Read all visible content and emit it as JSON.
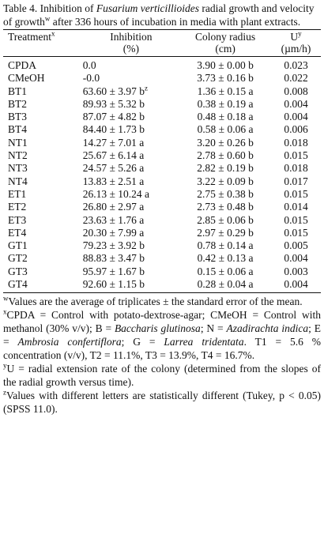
{
  "caption": {
    "prefix": "Table 4. Inhibition of ",
    "organism": "Fusarium verticillioides",
    "suffix_a": " radial growth and velocity of growth",
    "sup": "w",
    "suffix_b": " after 336 hours of incubation in media with plant extracts."
  },
  "headers": {
    "treatment": "Treatment",
    "treatment_sup": "x",
    "inhibition_line1": "Inhibition",
    "inhibition_line2": "(%)",
    "radius_line1": "Colony radius",
    "radius_line2": "(cm)",
    "u_line1": "U",
    "u_sup": "y",
    "u_line2": "(µm/h)"
  },
  "rows": [
    {
      "treatment": "CPDA",
      "inhibition": "0.0",
      "inhibition_sup": "",
      "radius": "3.90 ± 0.00 b",
      "u": "0.023"
    },
    {
      "treatment": "CMeOH",
      "inhibition": "-0.0",
      "inhibition_sup": "",
      "radius": "3.73 ± 0.16 b",
      "u": "0.022"
    },
    {
      "treatment": "BT1",
      "inhibition": "63.60 ± 3.97 b",
      "inhibition_sup": "z",
      "radius": "1.36 ± 0.15 a",
      "u": "0.008"
    },
    {
      "treatment": "BT2",
      "inhibition": "89.93 ± 5.32 b",
      "inhibition_sup": "",
      "radius": "0.38 ± 0.19 a",
      "u": "0.004"
    },
    {
      "treatment": "BT3",
      "inhibition": "87.07 ± 4.82 b",
      "inhibition_sup": "",
      "radius": "0.48 ± 0.18 a",
      "u": "0.004"
    },
    {
      "treatment": "BT4",
      "inhibition": "84.40 ± 1.73 b",
      "inhibition_sup": "",
      "radius": "0.58 ± 0.06 a",
      "u": "0.006"
    },
    {
      "treatment": "NT1",
      "inhibition": "14.27 ± 7.01 a",
      "inhibition_sup": "",
      "radius": "3.20 ± 0.26 b",
      "u": "0.018"
    },
    {
      "treatment": "NT2",
      "inhibition": "25.67 ± 6.14 a",
      "inhibition_sup": "",
      "radius": "2.78 ± 0.60 b",
      "u": "0.015"
    },
    {
      "treatment": "NT3",
      "inhibition": "24.57 ± 5.26 a",
      "inhibition_sup": "",
      "radius": "2.82 ± 0.19 b",
      "u": "0.018"
    },
    {
      "treatment": "NT4",
      "inhibition": "13.83 ± 2.51 a",
      "inhibition_sup": "",
      "radius": "3.22 ± 0.09 b",
      "u": "0.017"
    },
    {
      "treatment": "ET1",
      "inhibition": "26.13 ± 10.24 a",
      "inhibition_sup": "",
      "radius": "2.75 ± 0.38 b",
      "u": "0.015"
    },
    {
      "treatment": "ET2",
      "inhibition": "26.80 ± 2.97 a",
      "inhibition_sup": "",
      "radius": "2.73 ± 0.48 b",
      "u": "0.014"
    },
    {
      "treatment": "ET3",
      "inhibition": "23.63 ± 1.76 a",
      "inhibition_sup": "",
      "radius": "2.85 ± 0.06 b",
      "u": "0.015"
    },
    {
      "treatment": "ET4",
      "inhibition": "20.30 ± 7.99 a",
      "inhibition_sup": "",
      "radius": "2.97 ± 0.29 b",
      "u": "0.015"
    },
    {
      "treatment": "GT1",
      "inhibition": "79.23 ± 3.92 b",
      "inhibition_sup": "",
      "radius": "0.78 ± 0.14 a",
      "u": "0.005"
    },
    {
      "treatment": "GT2",
      "inhibition": "88.83 ± 3.47 b",
      "inhibition_sup": "",
      "radius": "0.42 ± 0.13 a",
      "u": "0.004"
    },
    {
      "treatment": "GT3",
      "inhibition": "95.97 ± 1.67 b",
      "inhibition_sup": "",
      "radius": "0.15 ± 0.06 a",
      "u": "0.003"
    },
    {
      "treatment": "GT4",
      "inhibition": "92.60 ± 1.15 b",
      "inhibition_sup": "",
      "radius": "0.28 ± 0.04 a",
      "u": "0.004"
    }
  ],
  "footnotes": {
    "w": {
      "sup": "w",
      "text": "Values are the average of triplicates ± the standard error of the mean."
    },
    "x": {
      "sup": "x",
      "p1": "CPDA = Control with potato-dextrose-agar; CMeOH = Control with methanol (30% v/v); B = ",
      "i1": "Baccharis glutinosa",
      "p2": "; N = ",
      "i2": "Azadirachta indica",
      "p3": "; E = ",
      "i3": "Ambrosia confertiflora",
      "p4": "; G = ",
      "i4": "Larrea tridentata",
      "p5": ". T1 = 5.6 % concentration (v/v), T2 = 11.1%, T3 = 13.9%, T4 = 16.7%."
    },
    "y": {
      "sup": "y",
      "text": "U = radial extension rate of the colony (determined from the slopes of the radial growth versus time)."
    },
    "z": {
      "sup": "z",
      "text": "Values with different letters are statistically different (Tukey, p < 0.05) (SPSS 11.0)."
    }
  }
}
